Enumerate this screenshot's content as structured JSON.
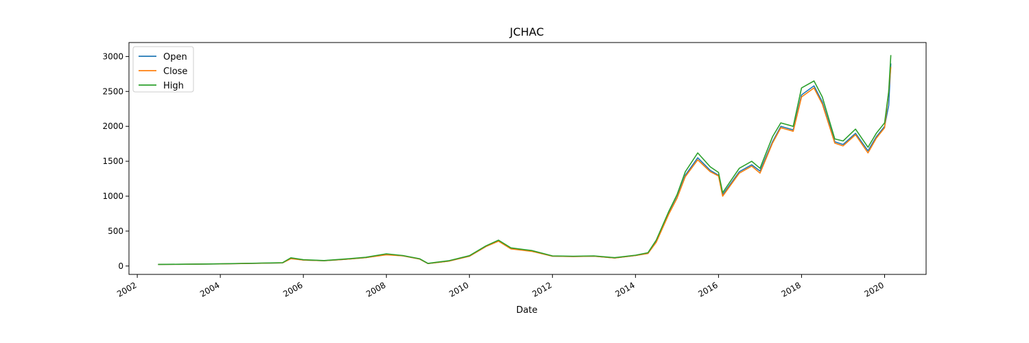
{
  "chart_data": {
    "type": "line",
    "title": "JCHAC",
    "xlabel": "Date",
    "ylabel": "",
    "xlim": [
      2001.8,
      2021.0
    ],
    "ylim": [
      -120,
      3200
    ],
    "x_ticks": [
      2002,
      2004,
      2006,
      2008,
      2010,
      2012,
      2014,
      2016,
      2018,
      2020
    ],
    "x_tick_labels": [
      "2002",
      "2004",
      "2006",
      "2008",
      "2010",
      "2012",
      "2014",
      "2016",
      "2018",
      "2020"
    ],
    "y_ticks": [
      0,
      500,
      1000,
      1500,
      2000,
      2500,
      3000
    ],
    "y_tick_labels": [
      "0",
      "500",
      "1000",
      "1500",
      "2000",
      "2500",
      "3000"
    ],
    "legend_position": "top-left",
    "series": [
      {
        "name": "Open",
        "color": "#1f77b4",
        "points": [
          [
            2002.5,
            22
          ],
          [
            2003.0,
            24
          ],
          [
            2003.5,
            27
          ],
          [
            2004.0,
            30
          ],
          [
            2004.5,
            35
          ],
          [
            2005.0,
            40
          ],
          [
            2005.5,
            45
          ],
          [
            2005.7,
            110
          ],
          [
            2006.0,
            85
          ],
          [
            2006.5,
            75
          ],
          [
            2007.0,
            95
          ],
          [
            2007.5,
            120
          ],
          [
            2008.0,
            165
          ],
          [
            2008.4,
            145
          ],
          [
            2008.8,
            100
          ],
          [
            2009.0,
            35
          ],
          [
            2009.5,
            70
          ],
          [
            2010.0,
            140
          ],
          [
            2010.4,
            280
          ],
          [
            2010.7,
            360
          ],
          [
            2011.0,
            250
          ],
          [
            2011.5,
            215
          ],
          [
            2012.0,
            140
          ],
          [
            2012.5,
            135
          ],
          [
            2013.0,
            140
          ],
          [
            2013.5,
            115
          ],
          [
            2014.0,
            150
          ],
          [
            2014.3,
            180
          ],
          [
            2014.5,
            350
          ],
          [
            2014.8,
            750
          ],
          [
            2015.0,
            980
          ],
          [
            2015.2,
            1300
          ],
          [
            2015.5,
            1550
          ],
          [
            2015.8,
            1370
          ],
          [
            2016.0,
            1300
          ],
          [
            2016.1,
            1020
          ],
          [
            2016.5,
            1350
          ],
          [
            2016.8,
            1450
          ],
          [
            2017.0,
            1360
          ],
          [
            2017.3,
            1780
          ],
          [
            2017.5,
            2000
          ],
          [
            2017.8,
            1950
          ],
          [
            2018.0,
            2450
          ],
          [
            2018.3,
            2580
          ],
          [
            2018.5,
            2350
          ],
          [
            2018.8,
            1780
          ],
          [
            2019.0,
            1740
          ],
          [
            2019.3,
            1900
          ],
          [
            2019.6,
            1650
          ],
          [
            2019.8,
            1850
          ],
          [
            2020.0,
            2000
          ],
          [
            2020.1,
            2300
          ],
          [
            2020.15,
            2900
          ]
        ]
      },
      {
        "name": "Close",
        "color": "#ff7f0e",
        "points": [
          [
            2002.5,
            22
          ],
          [
            2003.0,
            24
          ],
          [
            2003.5,
            27
          ],
          [
            2004.0,
            30
          ],
          [
            2004.5,
            35
          ],
          [
            2005.0,
            40
          ],
          [
            2005.5,
            45
          ],
          [
            2005.7,
            105
          ],
          [
            2006.0,
            85
          ],
          [
            2006.5,
            75
          ],
          [
            2007.0,
            95
          ],
          [
            2007.5,
            120
          ],
          [
            2008.0,
            160
          ],
          [
            2008.4,
            145
          ],
          [
            2008.8,
            100
          ],
          [
            2009.0,
            35
          ],
          [
            2009.5,
            70
          ],
          [
            2010.0,
            140
          ],
          [
            2010.4,
            280
          ],
          [
            2010.7,
            355
          ],
          [
            2011.0,
            245
          ],
          [
            2011.5,
            210
          ],
          [
            2012.0,
            140
          ],
          [
            2012.5,
            135
          ],
          [
            2013.0,
            140
          ],
          [
            2013.5,
            115
          ],
          [
            2014.0,
            150
          ],
          [
            2014.3,
            180
          ],
          [
            2014.5,
            340
          ],
          [
            2014.8,
            740
          ],
          [
            2015.0,
            970
          ],
          [
            2015.2,
            1280
          ],
          [
            2015.5,
            1520
          ],
          [
            2015.8,
            1350
          ],
          [
            2016.0,
            1290
          ],
          [
            2016.1,
            1000
          ],
          [
            2016.5,
            1330
          ],
          [
            2016.8,
            1430
          ],
          [
            2017.0,
            1330
          ],
          [
            2017.3,
            1760
          ],
          [
            2017.5,
            1980
          ],
          [
            2017.8,
            1930
          ],
          [
            2018.0,
            2420
          ],
          [
            2018.3,
            2550
          ],
          [
            2018.5,
            2320
          ],
          [
            2018.8,
            1760
          ],
          [
            2019.0,
            1720
          ],
          [
            2019.3,
            1880
          ],
          [
            2019.6,
            1620
          ],
          [
            2019.8,
            1830
          ],
          [
            2020.0,
            1980
          ],
          [
            2020.1,
            2500
          ],
          [
            2020.15,
            2850
          ]
        ]
      },
      {
        "name": "High",
        "color": "#2ca02c",
        "points": [
          [
            2002.5,
            23
          ],
          [
            2003.0,
            25
          ],
          [
            2003.5,
            28
          ],
          [
            2004.0,
            31
          ],
          [
            2004.5,
            37
          ],
          [
            2005.0,
            42
          ],
          [
            2005.5,
            48
          ],
          [
            2005.7,
            118
          ],
          [
            2006.0,
            90
          ],
          [
            2006.5,
            78
          ],
          [
            2007.0,
            100
          ],
          [
            2007.5,
            125
          ],
          [
            2008.0,
            175
          ],
          [
            2008.4,
            150
          ],
          [
            2008.8,
            105
          ],
          [
            2009.0,
            38
          ],
          [
            2009.5,
            75
          ],
          [
            2010.0,
            148
          ],
          [
            2010.4,
            290
          ],
          [
            2010.7,
            370
          ],
          [
            2011.0,
            260
          ],
          [
            2011.5,
            222
          ],
          [
            2012.0,
            145
          ],
          [
            2012.5,
            140
          ],
          [
            2013.0,
            145
          ],
          [
            2013.5,
            120
          ],
          [
            2014.0,
            155
          ],
          [
            2014.3,
            190
          ],
          [
            2014.5,
            370
          ],
          [
            2014.8,
            780
          ],
          [
            2015.0,
            1020
          ],
          [
            2015.2,
            1350
          ],
          [
            2015.5,
            1620
          ],
          [
            2015.8,
            1420
          ],
          [
            2016.0,
            1340
          ],
          [
            2016.1,
            1050
          ],
          [
            2016.5,
            1400
          ],
          [
            2016.8,
            1500
          ],
          [
            2017.0,
            1400
          ],
          [
            2017.3,
            1850
          ],
          [
            2017.5,
            2050
          ],
          [
            2017.8,
            2000
          ],
          [
            2018.0,
            2550
          ],
          [
            2018.3,
            2650
          ],
          [
            2018.5,
            2420
          ],
          [
            2018.8,
            1820
          ],
          [
            2019.0,
            1790
          ],
          [
            2019.3,
            1960
          ],
          [
            2019.6,
            1700
          ],
          [
            2019.8,
            1900
          ],
          [
            2020.0,
            2050
          ],
          [
            2020.1,
            2500
          ],
          [
            2020.15,
            3020
          ]
        ]
      }
    ]
  }
}
